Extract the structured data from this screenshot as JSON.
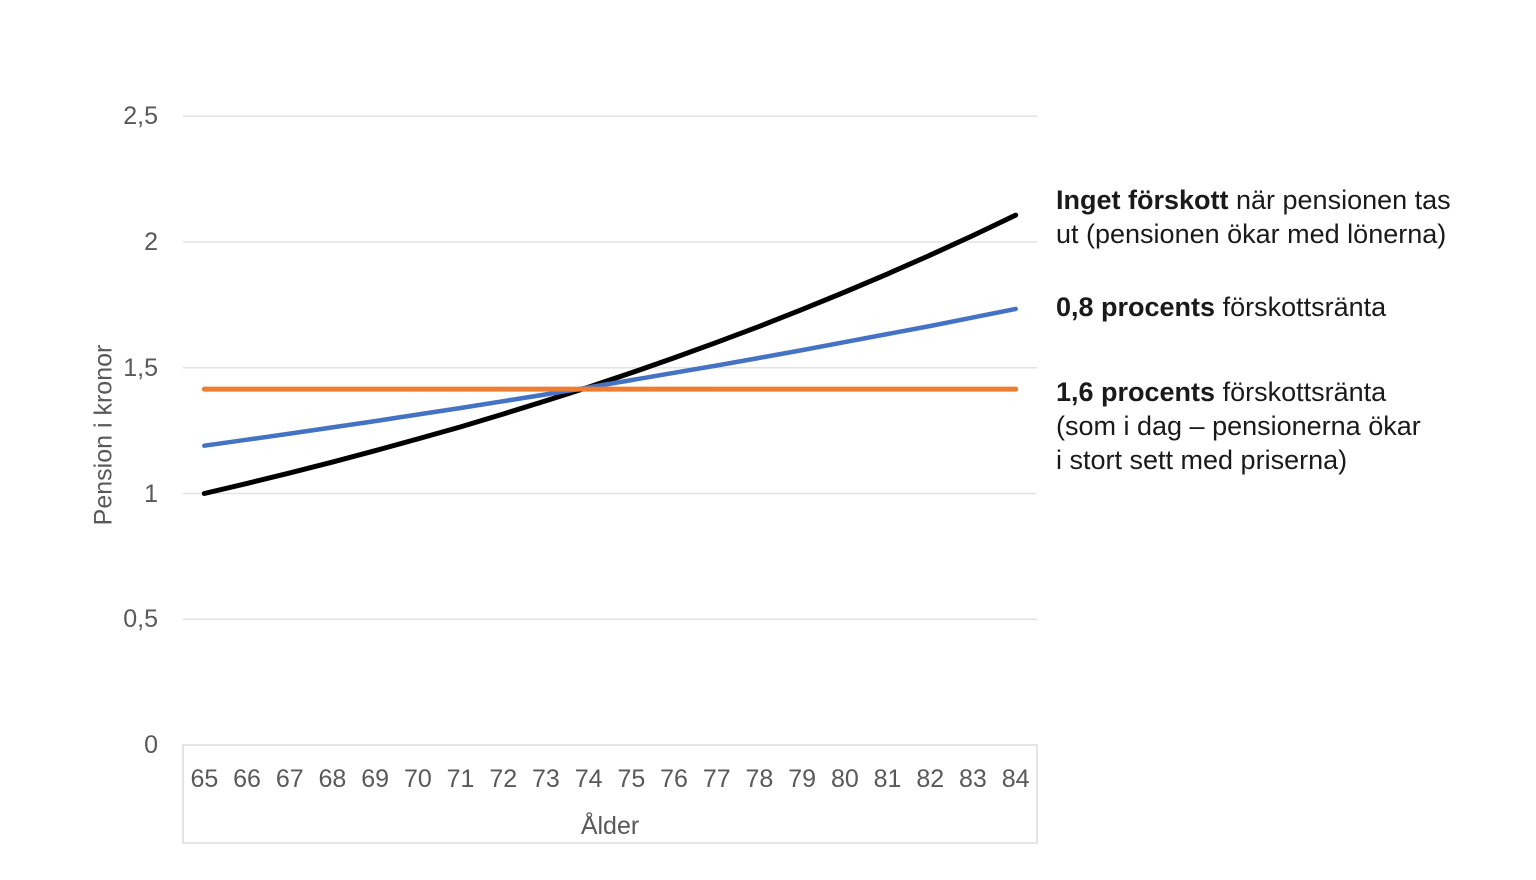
{
  "chart_data": {
    "type": "line",
    "title": "",
    "xlabel": "Ålder",
    "ylabel": "Pension i kronor",
    "ylim": [
      0,
      2.5
    ],
    "grid": true,
    "legend_position": "right-side text annotations aligned with line ends",
    "x": [
      65,
      66,
      67,
      68,
      69,
      70,
      71,
      72,
      73,
      74,
      75,
      76,
      77,
      78,
      79,
      80,
      81,
      82,
      83,
      84
    ],
    "yticks": [
      {
        "label": "0",
        "value": 0
      },
      {
        "label": "0,5",
        "value": 0.5
      },
      {
        "label": "1",
        "value": 1
      },
      {
        "label": "1,5",
        "value": 1.5
      },
      {
        "label": "2",
        "value": 2
      },
      {
        "label": "2,5",
        "value": 2.5
      }
    ],
    "series": [
      {
        "name": "Inget förskott när pensionen tas ut (pensionen ökar med lönerna)",
        "color": "#000000",
        "stroke_width": 5,
        "values": [
          1.0,
          1.04,
          1.082,
          1.125,
          1.17,
          1.217,
          1.265,
          1.316,
          1.369,
          1.423,
          1.48,
          1.539,
          1.601,
          1.665,
          1.732,
          1.801,
          1.873,
          1.948,
          2.026,
          2.107
        ]
      },
      {
        "name": "0,8 procents förskottsränta",
        "color": "#4472C4",
        "stroke_width": 4.5,
        "values": [
          1.19,
          1.214,
          1.238,
          1.263,
          1.288,
          1.314,
          1.34,
          1.367,
          1.394,
          1.422,
          1.451,
          1.48,
          1.509,
          1.539,
          1.57,
          1.602,
          1.634,
          1.666,
          1.7,
          1.734
        ]
      },
      {
        "name": "1,6 procents förskottsränta (som i dag – pensionerna ökar i stort sett med priserna)",
        "color": "#ED7D31",
        "stroke_width": 5,
        "values": [
          1.415,
          1.415,
          1.415,
          1.415,
          1.415,
          1.415,
          1.415,
          1.415,
          1.415,
          1.415,
          1.415,
          1.415,
          1.415,
          1.415,
          1.415,
          1.415,
          1.415,
          1.415,
          1.415,
          1.415
        ]
      }
    ],
    "annotations": [
      {
        "lines": [
          [
            {
              "text": "Inget förskott",
              "bold": true
            },
            {
              "text": " när pensionen tas",
              "bold": false
            }
          ],
          [
            {
              "text": "ut (pensionen ökar med lönerna)",
              "bold": false
            }
          ]
        ]
      },
      {
        "lines": [
          [
            {
              "text": "0,8 procents",
              "bold": true
            },
            {
              "text": " förskottsränta",
              "bold": false
            }
          ]
        ]
      },
      {
        "lines": [
          [
            {
              "text": "1,6 procents",
              "bold": true
            },
            {
              "text": " förskottsränta",
              "bold": false
            }
          ],
          [
            {
              "text": "(som i dag – pensionerna ökar",
              "bold": false
            }
          ],
          [
            {
              "text": "i stort sett med priserna)",
              "bold": false
            }
          ]
        ]
      }
    ],
    "colors": {
      "gridline": "#e2e2e2",
      "axis_box_border": "#dcdcdc",
      "tick_text": "#595959",
      "annotation_text": "#1a1a1a"
    }
  }
}
